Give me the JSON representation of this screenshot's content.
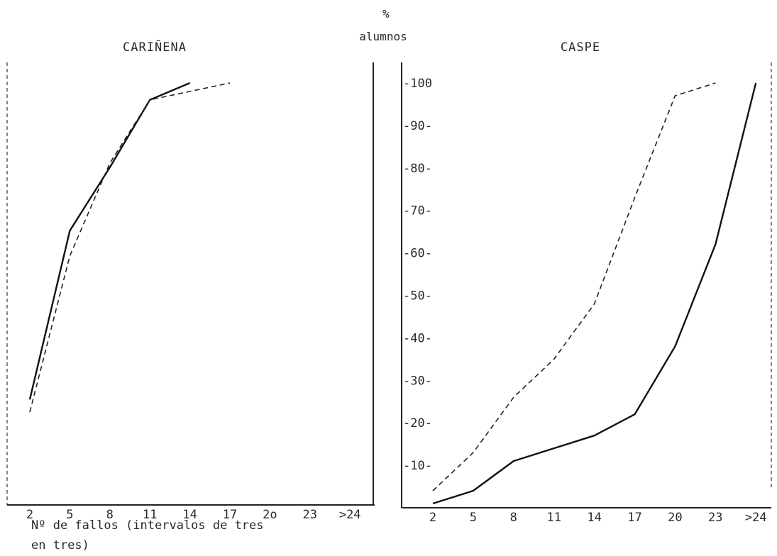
{
  "ylabel_symbol": "%",
  "ylabel": "alumnos",
  "xlabel_line1": "Nº de fallos (intervalos de tres",
  "xlabel_line2": "en tres)",
  "y_ticks": [
    "-100",
    "-90-",
    "-80-",
    "-70-",
    "-60-",
    "-50-",
    "-40-",
    "-30-",
    "-20-",
    "-10-"
  ],
  "chart_data": [
    {
      "type": "line",
      "title": "CARIÑENA",
      "categories": [
        "2",
        "5",
        "8",
        "11",
        "14",
        "17",
        "2o",
        "23",
        ">24"
      ],
      "ylim": [
        0,
        100
      ],
      "series": [
        {
          "style": "solid",
          "x": [
            "2",
            "5",
            "8",
            "11",
            "14"
          ],
          "values": [
            25,
            65,
            80,
            96,
            100
          ]
        },
        {
          "style": "dashed",
          "x": [
            "2",
            "5",
            "8",
            "11",
            "14",
            "17"
          ],
          "values": [
            22,
            59,
            81,
            96,
            98,
            100
          ]
        }
      ]
    },
    {
      "type": "line",
      "title": "CASPE",
      "categories": [
        "2",
        "5",
        "8",
        "11",
        "14",
        "17",
        "20",
        "23",
        ">24"
      ],
      "ylim": [
        0,
        100
      ],
      "series": [
        {
          "style": "solid",
          "x": [
            "2",
            "5",
            "8",
            "11",
            "14",
            "17",
            "20",
            "23",
            ">24"
          ],
          "values": [
            1,
            4,
            11,
            14,
            17,
            22,
            38,
            62,
            100
          ]
        },
        {
          "style": "dashed",
          "x": [
            "2",
            "5",
            "8",
            "11",
            "14",
            "17",
            "20",
            "23"
          ],
          "values": [
            4,
            13,
            26,
            35,
            48,
            73,
            97,
            100
          ]
        }
      ]
    }
  ]
}
